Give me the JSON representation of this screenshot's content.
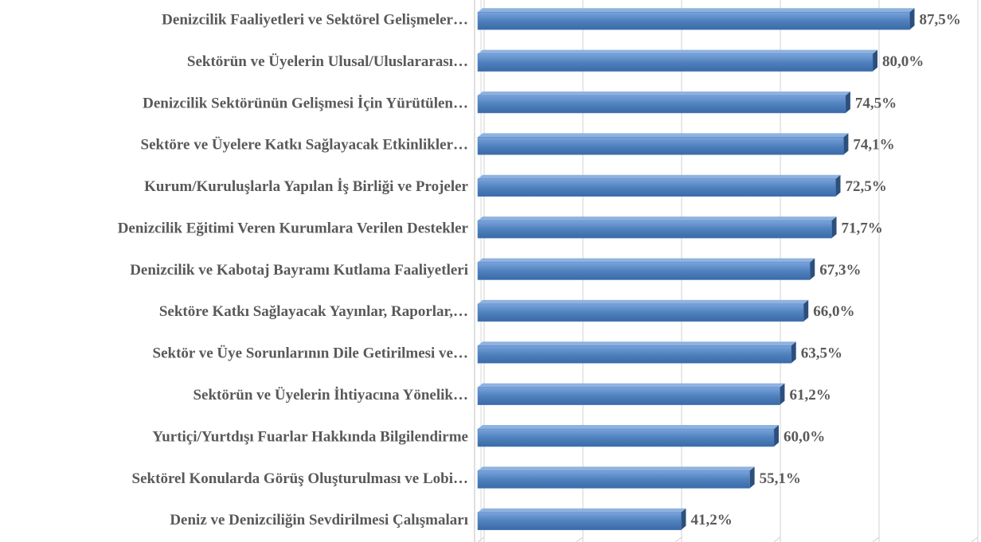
{
  "chart_data": {
    "type": "barh",
    "categories": [
      "Denizcilik Faaliyetleri ve Sektörel Gelişmeler…",
      "Sektörün ve Üyelerin Ulusal/Uluslararası…",
      "Denizcilik Sektörünün Gelişmesi İçin Yürütülen…",
      "Sektöre ve Üyelere Katkı Sağlayacak Etkinlikler…",
      "Kurum/Kuruluşlarla Yapılan İş Birliği ve Projeler",
      "Denizcilik Eğitimi Veren Kurumlara Verilen Destekler",
      "Denizcilik ve Kabotaj Bayramı Kutlama Faaliyetleri",
      "Sektöre Katkı Sağlayacak Yayınlar, Raporlar,…",
      "Sektör ve Üye Sorunlarının Dile Getirilmesi ve…",
      "Sektörün ve Üyelerin İhtiyacına Yönelik…",
      "Yurtiçi/Yurtdışı Fuarlar Hakkında Bilgilendirme",
      "Sektörel Konularda Görüş Oluşturulması ve Lobi…",
      "Deniz ve Denizciliğin Sevdirilmesi Çalışmaları"
    ],
    "values": [
      87.5,
      80.0,
      74.5,
      74.1,
      72.5,
      71.7,
      67.3,
      66.0,
      63.5,
      61.2,
      60.0,
      55.1,
      41.2
    ],
    "value_labels": [
      "87,5%",
      "80,0%",
      "74,5%",
      "74,1%",
      "72,5%",
      "71,7%",
      "67,3%",
      "66,0%",
      "63,5%",
      "61,2%",
      "60,0%",
      "55,1%",
      "41,2%"
    ],
    "color": "#4f81bd",
    "xlim": [
      0,
      100
    ],
    "xticks": [
      0,
      20,
      40,
      60,
      80,
      100
    ],
    "grid": true
  }
}
